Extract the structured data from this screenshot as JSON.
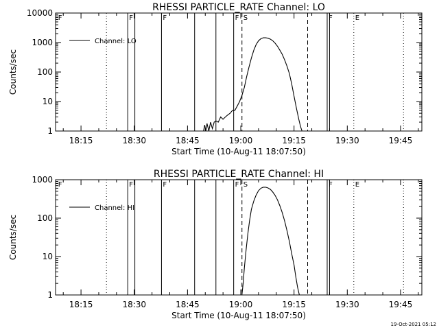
{
  "timestamp": "19-Oct-2021 05:12",
  "chart_data": [
    {
      "type": "line",
      "title": "RHESSI PARTICLE_RATE Channel: LO",
      "xlabel": "Start Time (10-Aug-11 18:07:50)",
      "ylabel": "Counts/sec",
      "y_scale": "log",
      "xlim": [
        "18:07:50",
        "19:51:00"
      ],
      "ylim": [
        1,
        10000
      ],
      "x_ticks": [
        "18:15",
        "18:30",
        "18:45",
        "19:00",
        "19:15",
        "19:30",
        "19:45"
      ],
      "y_ticks": [
        "1",
        "10",
        "100",
        "1000",
        "10000"
      ],
      "legend": {
        "placement": "top-left",
        "entries": [
          "Channel: LO"
        ]
      },
      "series": [
        {
          "name": "Channel: LO",
          "x": [
            "18:49:30",
            "18:49:50",
            "18:50:10",
            "18:50:30",
            "18:51:00",
            "18:51:30",
            "18:52:00",
            "18:52:30",
            "18:53:00",
            "18:53:40",
            "18:54:20",
            "18:55:00",
            "18:55:40",
            "18:56:20",
            "18:57:00",
            "18:57:40",
            "18:58:20",
            "18:59:00",
            "18:59:40",
            "19:00:20",
            "19:01:00",
            "19:01:40",
            "19:02:20",
            "19:03:00",
            "19:03:40",
            "19:04:20",
            "19:05:00",
            "19:05:40",
            "19:06:20",
            "19:07:00",
            "19:07:40",
            "19:08:20",
            "19:09:00",
            "19:09:40",
            "19:10:20",
            "19:11:00",
            "19:11:40",
            "19:12:20",
            "19:13:00",
            "19:13:40",
            "19:14:20",
            "19:15:00",
            "19:15:40",
            "19:16:20",
            "19:16:50",
            "19:17:15"
          ],
          "y": [
            1,
            1.6,
            1,
            1.8,
            1,
            2,
            1.2,
            2,
            2.2,
            2,
            3,
            2.5,
            3,
            3.5,
            4,
            5,
            5,
            7,
            10,
            16,
            30,
            70,
            150,
            300,
            550,
            850,
            1150,
            1350,
            1450,
            1450,
            1400,
            1300,
            1150,
            950,
            750,
            550,
            400,
            260,
            160,
            90,
            40,
            15,
            6,
            2.5,
            1.4,
            1
          ]
        }
      ],
      "markers": [
        {
          "label": "F",
          "time": "18:08:10",
          "style": "solid",
          "show_line": false
        },
        {
          "label": "",
          "time": "18:22:10",
          "style": "dotted"
        },
        {
          "label": "F",
          "time": "18:28:10",
          "style": "solid"
        },
        {
          "label": "",
          "time": "18:30:10",
          "style": "solid"
        },
        {
          "label": "F",
          "time": "18:37:40",
          "style": "solid"
        },
        {
          "label": "",
          "time": "18:47:00",
          "style": "solid"
        },
        {
          "label": "",
          "time": "18:53:00",
          "style": "solid"
        },
        {
          "label": "F",
          "time": "18:58:00",
          "style": "solid"
        },
        {
          "label": "S",
          "time": "19:00:20",
          "style": "dashed"
        },
        {
          "label": "",
          "time": "19:18:50",
          "style": "dashed"
        },
        {
          "label": "F",
          "time": "19:24:20",
          "style": "solid"
        },
        {
          "label": "",
          "time": "19:25:00",
          "style": "solid"
        },
        {
          "label": "E",
          "time": "19:31:50",
          "style": "dotted"
        },
        {
          "label": "",
          "time": "19:45:50",
          "style": "dotted"
        }
      ]
    },
    {
      "type": "line",
      "title": "RHESSI PARTICLE_RATE Channel: HI",
      "xlabel": "Start Time (10-Aug-11 18:07:50)",
      "ylabel": "Counts/sec",
      "y_scale": "log",
      "xlim": [
        "18:07:50",
        "19:51:00"
      ],
      "ylim": [
        1,
        1000
      ],
      "x_ticks": [
        "18:15",
        "18:30",
        "18:45",
        "19:00",
        "19:15",
        "19:30",
        "19:45"
      ],
      "y_ticks": [
        "1",
        "10",
        "100",
        "1000"
      ],
      "legend": {
        "placement": "top-left",
        "entries": [
          "Channel: HI"
        ]
      },
      "series": [
        {
          "name": "Channel: HI",
          "x": [
            "19:00:20",
            "19:00:40",
            "19:01:00",
            "19:01:30",
            "19:02:00",
            "19:02:30",
            "19:03:00",
            "19:03:40",
            "19:04:20",
            "19:05:00",
            "19:05:40",
            "19:06:20",
            "19:07:00",
            "19:07:40",
            "19:08:20",
            "19:09:00",
            "19:09:40",
            "19:10:20",
            "19:11:00",
            "19:11:40",
            "19:12:20",
            "19:13:00",
            "19:13:40",
            "19:14:20",
            "19:15:00",
            "19:15:30",
            "19:16:00",
            "19:16:30"
          ],
          "y": [
            1,
            2,
            5,
            15,
            40,
            90,
            170,
            280,
            400,
            520,
            600,
            640,
            640,
            610,
            560,
            480,
            390,
            300,
            210,
            140,
            85,
            48,
            25,
            12,
            6,
            3,
            1.6,
            1
          ]
        }
      ],
      "markers": [
        {
          "label": "F",
          "time": "18:08:10",
          "style": "solid",
          "show_line": false
        },
        {
          "label": "",
          "time": "18:22:10",
          "style": "dotted"
        },
        {
          "label": "F",
          "time": "18:28:10",
          "style": "solid"
        },
        {
          "label": "",
          "time": "18:30:10",
          "style": "solid"
        },
        {
          "label": "F",
          "time": "18:37:40",
          "style": "solid"
        },
        {
          "label": "",
          "time": "18:47:00",
          "style": "solid"
        },
        {
          "label": "",
          "time": "18:53:00",
          "style": "solid"
        },
        {
          "label": "F",
          "time": "18:58:00",
          "style": "solid"
        },
        {
          "label": "S",
          "time": "19:00:20",
          "style": "dashed"
        },
        {
          "label": "",
          "time": "19:18:50",
          "style": "dashed"
        },
        {
          "label": "F",
          "time": "19:24:20",
          "style": "solid"
        },
        {
          "label": "",
          "time": "19:25:00",
          "style": "solid"
        },
        {
          "label": "E",
          "time": "19:31:50",
          "style": "dotted"
        },
        {
          "label": "",
          "time": "19:45:50",
          "style": "dotted"
        }
      ]
    }
  ]
}
